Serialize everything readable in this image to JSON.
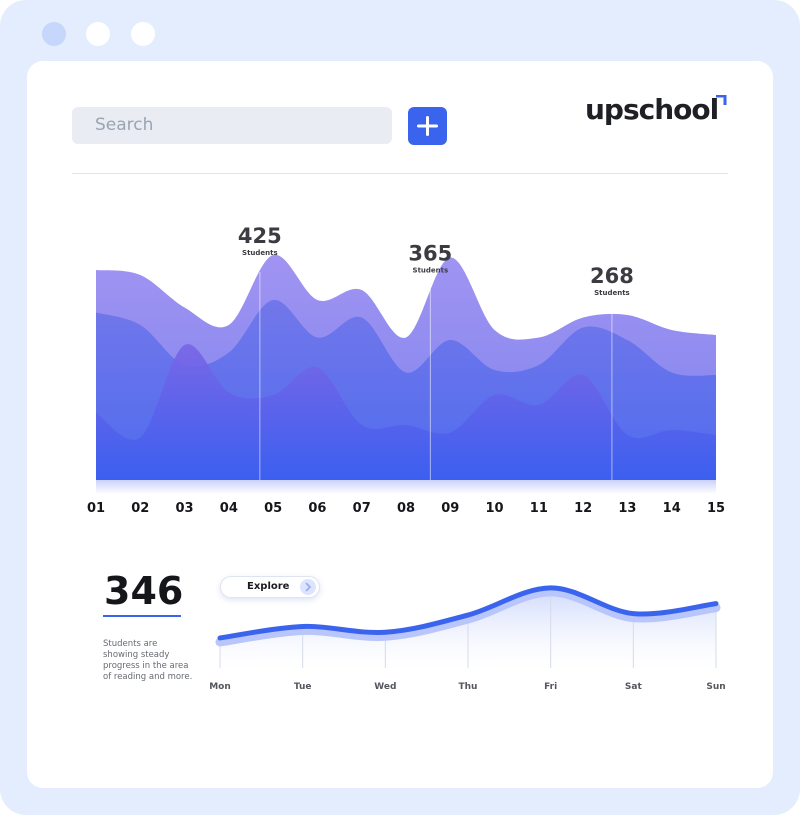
{
  "window": {
    "dots": [
      "dot-blue",
      "dot-white",
      "dot-white"
    ]
  },
  "header": {
    "search_placeholder": "Search",
    "add_icon": "plus-icon",
    "logo_text": "upschool"
  },
  "colors": {
    "accent": "#3b64ee",
    "frame": "#e4edfd",
    "layer_back": "#8f84f0",
    "layer_mid": "#6a78ee",
    "layer_front": "#4a63ee"
  },
  "chart_data": [
    {
      "type": "area",
      "categories": [
        "01",
        "02",
        "03",
        "04",
        "05",
        "06",
        "07",
        "08",
        "09",
        "10",
        "11",
        "12",
        "13",
        "14",
        "15"
      ],
      "annotations": [
        {
          "value": "425",
          "label": "Students",
          "x": 4.7
        },
        {
          "value": "365",
          "label": "Students",
          "x": 8.55
        },
        {
          "value": "268",
          "label": "Students",
          "x": 12.65
        }
      ],
      "series": [
        {
          "values": [
            8.4,
            8.2,
            6.9,
            6.2,
            9.0,
            7.2,
            7.6,
            5.7,
            8.9,
            6.0,
            5.7,
            6.5,
            6.6,
            6.0,
            5.8
          ]
        },
        {
          "values": [
            6.7,
            6.2,
            4.6,
            5.1,
            7.2,
            5.7,
            6.5,
            4.3,
            5.6,
            4.4,
            4.6,
            6.1,
            5.6,
            4.3,
            4.2
          ]
        },
        {
          "values": [
            2.7,
            1.7,
            5.4,
            3.5,
            3.4,
            4.5,
            2.2,
            2.2,
            1.9,
            3.4,
            3.0,
            4.2,
            1.8,
            2.0,
            1.8
          ]
        }
      ],
      "ylim": [
        0,
        10
      ]
    },
    {
      "type": "line",
      "categories": [
        "Mon",
        "Tue",
        "Wed",
        "Thu",
        "Fri",
        "Sat",
        "Sun"
      ],
      "values": [
        2.1,
        2.9,
        2.5,
        3.7,
        5.6,
        3.8,
        4.5
      ],
      "ylim": [
        0,
        6.5
      ]
    }
  ],
  "summary": {
    "value": "346",
    "description": "Students are showing steady progress in the area of reading and more.",
    "explore_label": "Explore"
  }
}
